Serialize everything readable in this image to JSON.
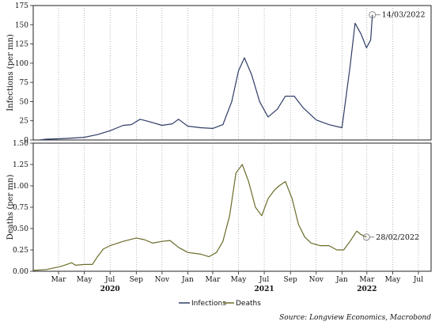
{
  "chart_data": [
    {
      "type": "line",
      "ylabel": "Infections (per mn)",
      "ylim": [
        0,
        175
      ],
      "yticks": [
        "0",
        "25",
        "50",
        "75",
        "100",
        "125",
        "150",
        "175"
      ],
      "xlim": [
        "2020-01-01",
        "2022-07-31"
      ],
      "grid": "vertical dotted",
      "series": [
        {
          "name": "Infections",
          "color": "#2f3d66",
          "points": [
            [
              "2020-01-15",
              0
            ],
            [
              "2020-02-01",
              1
            ],
            [
              "2020-03-01",
              1.5
            ],
            [
              "2020-04-01",
              2.5
            ],
            [
              "2020-05-01",
              3.5
            ],
            [
              "2020-06-01",
              7
            ],
            [
              "2020-07-01",
              12
            ],
            [
              "2020-08-01",
              19
            ],
            [
              "2020-08-20",
              20
            ],
            [
              "2020-09-10",
              27
            ],
            [
              "2020-10-01",
              24
            ],
            [
              "2020-11-01",
              19
            ],
            [
              "2020-11-25",
              21
            ],
            [
              "2020-12-10",
              27
            ],
            [
              "2021-01-01",
              18
            ],
            [
              "2021-02-01",
              16
            ],
            [
              "2021-03-01",
              15
            ],
            [
              "2021-03-25",
              20
            ],
            [
              "2021-04-15",
              50
            ],
            [
              "2021-05-01",
              90
            ],
            [
              "2021-05-15",
              107
            ],
            [
              "2021-06-01",
              85
            ],
            [
              "2021-06-20",
              50
            ],
            [
              "2021-07-10",
              30
            ],
            [
              "2021-08-01",
              40
            ],
            [
              "2021-08-20",
              57
            ],
            [
              "2021-09-10",
              57
            ],
            [
              "2021-10-01",
              42
            ],
            [
              "2021-11-01",
              26
            ],
            [
              "2021-12-01",
              20
            ],
            [
              "2022-01-01",
              16
            ],
            [
              "2022-01-20",
              95
            ],
            [
              "2022-02-01",
              152
            ],
            [
              "2022-02-15",
              138
            ],
            [
              "2022-02-28",
              120
            ],
            [
              "2022-03-10",
              130
            ],
            [
              "2022-03-14",
              163
            ]
          ]
        }
      ],
      "annotation": {
        "x": "2022-03-14",
        "y": 163,
        "text": "14/03/2022"
      }
    },
    {
      "type": "line",
      "ylabel": "Deaths (per mn)",
      "ylim": [
        0,
        1.5
      ],
      "yticks": [
        "0.00",
        "0.25",
        "0.50",
        "0.75",
        "1.00",
        "1.25",
        "1.50"
      ],
      "xlim": [
        "2020-01-01",
        "2022-07-31"
      ],
      "xticks": [
        "Mar",
        "May",
        "Jul",
        "Sep",
        "Nov",
        "Jan",
        "Mar",
        "May",
        "Jul",
        "Sep",
        "Nov",
        "Jan",
        "Mar",
        "May",
        "Jul"
      ],
      "year_labels": [
        "2020",
        "2021",
        "2022"
      ],
      "grid": "vertical dotted",
      "series": [
        {
          "name": "Deaths",
          "color": "#6b6b2a",
          "points": [
            [
              "2020-01-01",
              0.01
            ],
            [
              "2020-02-01",
              0.02
            ],
            [
              "2020-03-01",
              0.05
            ],
            [
              "2020-03-15",
              0.07
            ],
            [
              "2020-04-01",
              0.1
            ],
            [
              "2020-04-10",
              0.07
            ],
            [
              "2020-05-01",
              0.08
            ],
            [
              "2020-05-20",
              0.08
            ],
            [
              "2020-06-01",
              0.17
            ],
            [
              "2020-06-15",
              0.26
            ],
            [
              "2020-07-01",
              0.3
            ],
            [
              "2020-08-01",
              0.35
            ],
            [
              "2020-09-01",
              0.39
            ],
            [
              "2020-09-20",
              0.37
            ],
            [
              "2020-10-10",
              0.33
            ],
            [
              "2020-11-01",
              0.35
            ],
            [
              "2020-11-20",
              0.36
            ],
            [
              "2020-12-10",
              0.28
            ],
            [
              "2021-01-01",
              0.22
            ],
            [
              "2021-02-01",
              0.2
            ],
            [
              "2021-02-20",
              0.17
            ],
            [
              "2021-03-10",
              0.22
            ],
            [
              "2021-03-25",
              0.35
            ],
            [
              "2021-04-10",
              0.65
            ],
            [
              "2021-04-25",
              1.15
            ],
            [
              "2021-05-10",
              1.25
            ],
            [
              "2021-05-25",
              1.05
            ],
            [
              "2021-06-10",
              0.75
            ],
            [
              "2021-06-25",
              0.65
            ],
            [
              "2021-07-10",
              0.85
            ],
            [
              "2021-07-25",
              0.95
            ],
            [
              "2021-08-05",
              1.0
            ],
            [
              "2021-08-20",
              1.05
            ],
            [
              "2021-09-05",
              0.85
            ],
            [
              "2021-09-20",
              0.55
            ],
            [
              "2021-10-05",
              0.4
            ],
            [
              "2021-10-20",
              0.33
            ],
            [
              "2021-11-10",
              0.3
            ],
            [
              "2021-12-01",
              0.3
            ],
            [
              "2021-12-20",
              0.25
            ],
            [
              "2022-01-05",
              0.25
            ],
            [
              "2022-01-20",
              0.35
            ],
            [
              "2022-02-05",
              0.47
            ],
            [
              "2022-02-15",
              0.43
            ],
            [
              "2022-02-28",
              0.4
            ]
          ]
        }
      ],
      "annotation": {
        "x": "2022-02-28",
        "y": 0.4,
        "text": "28/02/2022"
      }
    }
  ],
  "legend": {
    "items": [
      {
        "label": "Infections",
        "color": "#2f3d66"
      },
      {
        "label": "Deaths",
        "color": "#6b6b2a"
      }
    ],
    "placement": "bottom-center"
  },
  "source": "Source: Longview Economics, Macrobond"
}
